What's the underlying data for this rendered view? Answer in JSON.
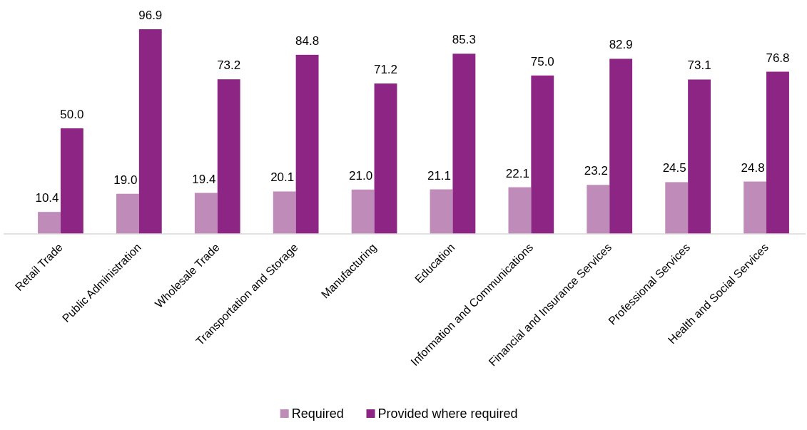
{
  "chart_data": {
    "type": "bar",
    "categories": [
      "Retail Trade",
      "Public Administration",
      "Wholesale Trade",
      "Transportation and Storage",
      "Manufacturing",
      "Education",
      "Information and Communications",
      "Financial and Insurance Services",
      "Professional Services",
      "Health and Social Services"
    ],
    "series": [
      {
        "name": "Required",
        "color": "#bf8cba",
        "values": [
          10.4,
          19.0,
          19.4,
          20.1,
          21.0,
          21.1,
          22.1,
          23.2,
          24.5,
          24.8
        ],
        "value_labels": [
          "10.4",
          "19.0",
          "19.4",
          "20.1",
          "21.0",
          "21.1",
          "22.1",
          "23.2",
          "24.5",
          "24.8"
        ]
      },
      {
        "name": "Provided where required",
        "color": "#8c2583",
        "values": [
          50.0,
          96.9,
          73.2,
          84.8,
          71.2,
          85.3,
          75.0,
          82.9,
          73.1,
          76.8
        ],
        "value_labels": [
          "50.0",
          "96.9",
          "73.2",
          "84.8",
          "71.2",
          "85.3",
          "75.0",
          "82.9",
          "73.1",
          "76.8"
        ]
      }
    ],
    "legend": "bottom"
  }
}
